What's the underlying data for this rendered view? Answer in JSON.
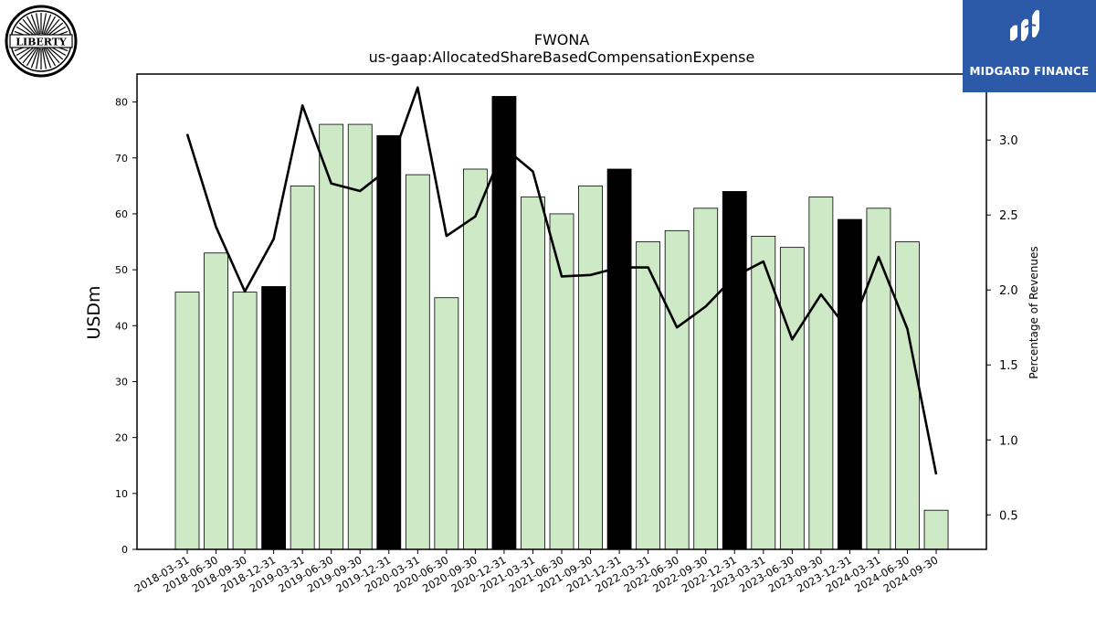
{
  "header": {
    "left_logo_text": "LIBERTY",
    "right_logo_text": "MIDGARD FINANCE"
  },
  "colors": {
    "bar_normal": "#cde9c6",
    "bar_highlight": "#000000",
    "line": "#000000",
    "logo_bg": "#2c5aa8"
  },
  "chart_data": {
    "type": "bar",
    "title": "FWONA",
    "subtitle": "us-gaap:AllocatedShareBasedCompensationExpense",
    "ylabel": "USDm",
    "y2label": "Percentage of Revenues",
    "ylim": [
      0,
      85
    ],
    "y2lim": [
      0.27,
      3.44
    ],
    "yticks": [
      0,
      10,
      20,
      30,
      40,
      50,
      60,
      70,
      80
    ],
    "y2ticks": [
      "0.5",
      "1.0",
      "1.5",
      "2.0",
      "2.5",
      "3.0"
    ],
    "categories": [
      "2018-03-31",
      "2018-06-30",
      "2018-09-30",
      "2018-12-31",
      "2019-03-31",
      "2019-06-30",
      "2019-09-30",
      "2019-12-31",
      "2020-03-31",
      "2020-06-30",
      "2020-09-30",
      "2020-12-31",
      "2021-03-31",
      "2021-06-30",
      "2021-09-30",
      "2021-12-31",
      "2022-03-31",
      "2022-06-30",
      "2022-09-30",
      "2022-12-31",
      "2023-03-31",
      "2023-06-30",
      "2023-09-30",
      "2023-12-31",
      "2024-03-31",
      "2024-06-30",
      "2024-09-30"
    ],
    "series": [
      {
        "type": "bar",
        "values": [
          46,
          53,
          46,
          47,
          65,
          76,
          76,
          74,
          67,
          45,
          68,
          81,
          63,
          60,
          65,
          68,
          55,
          57,
          61,
          64,
          56,
          54,
          63,
          59,
          61,
          55,
          7
        ],
        "highlight": [
          false,
          false,
          false,
          true,
          false,
          false,
          false,
          true,
          false,
          false,
          false,
          true,
          false,
          false,
          false,
          true,
          false,
          false,
          false,
          true,
          false,
          false,
          false,
          true,
          false,
          false,
          false
        ]
      },
      {
        "type": "line",
        "axis": "right",
        "values": [
          3.04,
          2.42,
          1.99,
          2.34,
          3.23,
          2.71,
          2.66,
          2.81,
          3.35,
          2.36,
          2.49,
          2.95,
          2.79,
          2.09,
          2.1,
          2.15,
          2.15,
          1.75,
          1.89,
          2.09,
          2.19,
          1.67,
          1.97,
          1.72,
          2.22,
          1.74,
          0.77
        ]
      }
    ]
  }
}
